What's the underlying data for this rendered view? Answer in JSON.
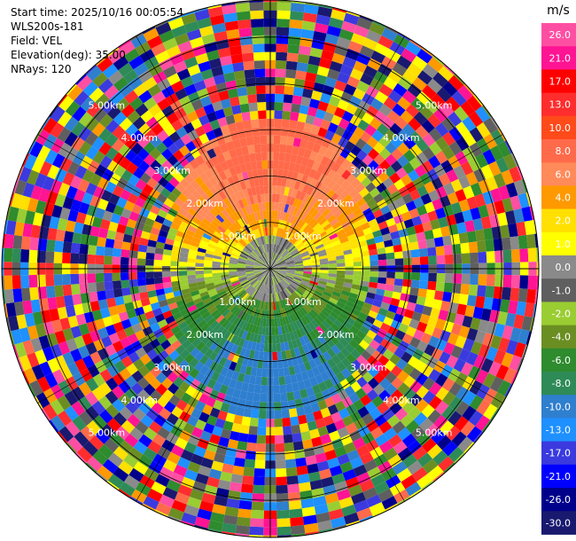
{
  "info": {
    "start_time": "Start time: 2025/10/16 00:05:54",
    "station": "WLS200s-181",
    "field": "Field: VEL",
    "elevation": "Elevation(deg): 35.00",
    "nrays": "NRays: 120"
  },
  "chart_data": {
    "type": "heatmap",
    "projection": "polar-ppi",
    "field": "VEL",
    "n_rays": 120,
    "elevation_deg": 35.0,
    "range_rings_km": [
      1.0,
      2.0,
      3.0,
      4.0,
      5.0
    ],
    "ring_label": [
      "1.00km",
      "2.00km",
      "3.00km",
      "4.00km",
      "5.00km"
    ],
    "max_range_km": 5.8,
    "colorbar": {
      "unit": "m/s",
      "ticks": [
        "26.0",
        "21.0",
        "17.0",
        "13.0",
        "10.0",
        "8.0",
        "6.0",
        "4.0",
        "2.0",
        "1.0",
        "0.0",
        "-1.0",
        "-2.0",
        "-4.0",
        "-6.0",
        "-8.0",
        "-10.0",
        "-13.0",
        "-17.0",
        "-21.0",
        "-26.0",
        "-30.0"
      ],
      "colors": [
        "#ff4fa3",
        "#ff1493",
        "#ff0000",
        "#ff2d2d",
        "#ff4a1a",
        "#ff6a4a",
        "#ff8a5a",
        "#ff9900",
        "#ffe000",
        "#ffff00",
        "#8a8a8a",
        "#5f5f5f",
        "#9acd32",
        "#6b8e23",
        "#2e8b2e",
        "#2e8b57",
        "#2f7fcf",
        "#1e90ff",
        "#3a3adf",
        "#0000ff",
        "#00008b",
        "#191970"
      ]
    },
    "pattern_description_colors": {
      "inner_positive": "#ff8a5a",
      "inner_near_zero": "#8a8a8a",
      "inner_negative": "#2e8b57"
    }
  }
}
